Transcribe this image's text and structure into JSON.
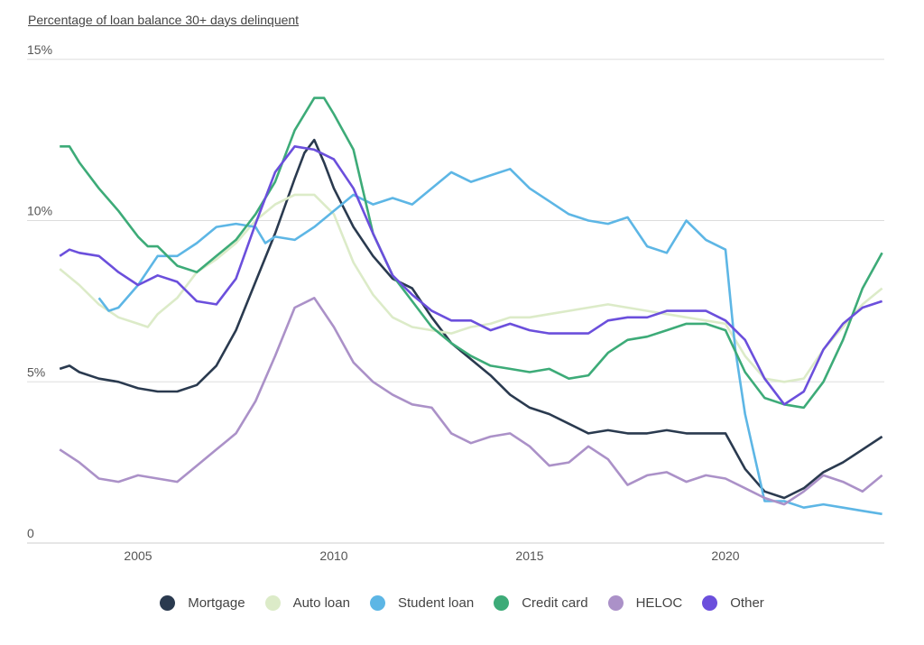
{
  "chart_data": {
    "type": "line",
    "title": "Percentage of loan balance 30+ days delinquent",
    "xlabel": "",
    "ylabel": "",
    "xlim": [
      2003,
      2024
    ],
    "ylim": [
      0,
      15
    ],
    "y_ticks": [
      "0",
      "5%",
      "10%",
      "15%"
    ],
    "y_tick_values": [
      0,
      5,
      10,
      15
    ],
    "x_ticks": [
      "2005",
      "2010",
      "2015",
      "2020"
    ],
    "x_tick_values": [
      2005,
      2010,
      2015,
      2020
    ],
    "grid": "horizontal",
    "legend": "bottom",
    "series": [
      {
        "name": "Mortgage",
        "color": "#2a3a4f",
        "x": [
          2003,
          2003.25,
          2003.5,
          2004,
          2004.5,
          2005,
          2005.5,
          2006,
          2006.5,
          2007,
          2007.5,
          2008,
          2008.5,
          2009,
          2009.25,
          2009.5,
          2009.75,
          2010,
          2010.5,
          2011,
          2011.5,
          2012,
          2012.5,
          2013,
          2013.5,
          2014,
          2014.5,
          2015,
          2015.5,
          2016,
          2016.5,
          2017,
          2017.5,
          2018,
          2018.5,
          2019,
          2019.5,
          2020,
          2020.5,
          2021,
          2021.5,
          2022,
          2022.5,
          2023,
          2023.5,
          2024
        ],
        "values": [
          5.4,
          5.5,
          5.3,
          5.1,
          5.0,
          4.8,
          4.7,
          4.7,
          4.9,
          5.5,
          6.6,
          8.1,
          9.6,
          11.3,
          12.1,
          12.5,
          11.8,
          11.0,
          9.8,
          8.9,
          8.2,
          7.9,
          7.0,
          6.2,
          5.7,
          5.2,
          4.6,
          4.2,
          4.0,
          3.7,
          3.4,
          3.5,
          3.4,
          3.4,
          3.5,
          3.4,
          3.4,
          3.4,
          2.3,
          1.6,
          1.4,
          1.7,
          2.2,
          2.5,
          2.9,
          3.3
        ]
      },
      {
        "name": "Auto loan",
        "color": "#dcebc8",
        "x": [
          2003,
          2003.5,
          2004,
          2004.5,
          2005,
          2005.25,
          2005.5,
          2006,
          2006.5,
          2007,
          2007.5,
          2008,
          2008.5,
          2009,
          2009.5,
          2010,
          2010.5,
          2011,
          2011.5,
          2012,
          2012.5,
          2013,
          2013.5,
          2014,
          2014.5,
          2015,
          2015.5,
          2016,
          2016.5,
          2017,
          2017.5,
          2018,
          2018.5,
          2019,
          2019.5,
          2020,
          2020.5,
          2021,
          2021.5,
          2022,
          2022.5,
          2023,
          2023.5,
          2024
        ],
        "values": [
          8.5,
          8.0,
          7.4,
          7.0,
          6.8,
          6.7,
          7.1,
          7.6,
          8.4,
          8.8,
          9.3,
          10.0,
          10.5,
          10.8,
          10.8,
          10.2,
          8.7,
          7.7,
          7.0,
          6.7,
          6.6,
          6.5,
          6.7,
          6.8,
          7.0,
          7.0,
          7.1,
          7.2,
          7.3,
          7.4,
          7.3,
          7.2,
          7.1,
          7.0,
          6.9,
          6.8,
          5.8,
          5.1,
          5.0,
          5.1,
          6.0,
          6.7,
          7.4,
          7.9
        ]
      },
      {
        "name": "Student loan",
        "color": "#5db6e5",
        "x": [
          2004,
          2004.25,
          2004.5,
          2005,
          2005.5,
          2006,
          2006.5,
          2007,
          2007.5,
          2008,
          2008.25,
          2008.5,
          2009,
          2009.5,
          2010,
          2010.5,
          2011,
          2011.5,
          2012,
          2012.5,
          2013,
          2013.5,
          2014,
          2014.5,
          2015,
          2015.5,
          2016,
          2016.5,
          2017,
          2017.5,
          2018,
          2018.5,
          2019,
          2019.5,
          2020,
          2020.25,
          2020.5,
          2021,
          2021.5,
          2022,
          2022.5,
          2023,
          2023.5,
          2024
        ],
        "values": [
          7.6,
          7.2,
          7.3,
          8.0,
          8.9,
          8.9,
          9.3,
          9.8,
          9.9,
          9.8,
          9.3,
          9.5,
          9.4,
          9.8,
          10.3,
          10.8,
          10.5,
          10.7,
          10.5,
          11.0,
          11.5,
          11.2,
          11.4,
          11.6,
          11.0,
          10.6,
          10.2,
          10.0,
          9.9,
          10.1,
          9.2,
          9.0,
          10.0,
          9.4,
          9.1,
          6.0,
          4.0,
          1.3,
          1.3,
          1.1,
          1.2,
          1.1,
          1.0,
          0.9
        ]
      },
      {
        "name": "Credit card",
        "color": "#3dab78",
        "x": [
          2003,
          2003.25,
          2003.5,
          2004,
          2004.5,
          2005,
          2005.25,
          2005.5,
          2006,
          2006.5,
          2007,
          2007.5,
          2008,
          2008.5,
          2009,
          2009.5,
          2009.75,
          2010,
          2010.5,
          2011,
          2011.5,
          2012,
          2012.5,
          2013,
          2013.5,
          2014,
          2014.5,
          2015,
          2015.5,
          2016,
          2016.5,
          2017,
          2017.5,
          2018,
          2018.5,
          2019,
          2019.5,
          2020,
          2020.5,
          2021,
          2021.5,
          2022,
          2022.5,
          2023,
          2023.5,
          2024
        ],
        "values": [
          12.3,
          12.3,
          11.8,
          11.0,
          10.3,
          9.5,
          9.2,
          9.2,
          8.6,
          8.4,
          8.9,
          9.4,
          10.2,
          11.2,
          12.8,
          13.8,
          13.8,
          13.3,
          12.2,
          9.6,
          8.3,
          7.5,
          6.7,
          6.2,
          5.8,
          5.5,
          5.4,
          5.3,
          5.4,
          5.1,
          5.2,
          5.9,
          6.3,
          6.4,
          6.6,
          6.8,
          6.8,
          6.6,
          5.3,
          4.5,
          4.3,
          4.2,
          5.0,
          6.3,
          7.9,
          9.0
        ]
      },
      {
        "name": "HELOC",
        "color": "#ab91c8",
        "x": [
          2003,
          2003.5,
          2004,
          2004.5,
          2005,
          2005.5,
          2006,
          2006.5,
          2007,
          2007.5,
          2008,
          2008.5,
          2009,
          2009.5,
          2010,
          2010.5,
          2011,
          2011.5,
          2012,
          2012.5,
          2013,
          2013.5,
          2014,
          2014.5,
          2015,
          2015.5,
          2016,
          2016.5,
          2017,
          2017.5,
          2018,
          2018.5,
          2019,
          2019.5,
          2020,
          2020.5,
          2021,
          2021.5,
          2022,
          2022.5,
          2023,
          2023.5,
          2024
        ],
        "values": [
          2.9,
          2.5,
          2.0,
          1.9,
          2.1,
          2.0,
          1.9,
          2.4,
          2.9,
          3.4,
          4.4,
          5.8,
          7.3,
          7.6,
          6.7,
          5.6,
          5.0,
          4.6,
          4.3,
          4.2,
          3.4,
          3.1,
          3.3,
          3.4,
          3.0,
          2.4,
          2.5,
          3.0,
          2.6,
          1.8,
          2.1,
          2.2,
          1.9,
          2.1,
          2.0,
          1.7,
          1.4,
          1.2,
          1.6,
          2.1,
          1.9,
          1.6,
          2.1
        ]
      },
      {
        "name": "Other",
        "color": "#6b4fdc",
        "x": [
          2003,
          2003.25,
          2003.5,
          2004,
          2004.5,
          2005,
          2005.5,
          2006,
          2006.5,
          2007,
          2007.5,
          2008,
          2008.5,
          2009,
          2009.5,
          2010,
          2010.5,
          2011,
          2011.5,
          2012,
          2012.5,
          2013,
          2013.5,
          2014,
          2014.5,
          2015,
          2015.5,
          2016,
          2016.5,
          2017,
          2017.5,
          2018,
          2018.5,
          2019,
          2019.5,
          2020,
          2020.5,
          2021,
          2021.5,
          2022,
          2022.5,
          2023,
          2023.5,
          2024
        ],
        "values": [
          8.9,
          9.1,
          9.0,
          8.9,
          8.4,
          8.0,
          8.3,
          8.1,
          7.5,
          7.4,
          8.2,
          9.9,
          11.5,
          12.3,
          12.2,
          11.9,
          11.0,
          9.6,
          8.3,
          7.7,
          7.2,
          6.9,
          6.9,
          6.6,
          6.8,
          6.6,
          6.5,
          6.5,
          6.5,
          6.9,
          7.0,
          7.0,
          7.2,
          7.2,
          7.2,
          6.9,
          6.3,
          5.1,
          4.3,
          4.7,
          6.0,
          6.8,
          7.3,
          7.5
        ]
      }
    ]
  }
}
